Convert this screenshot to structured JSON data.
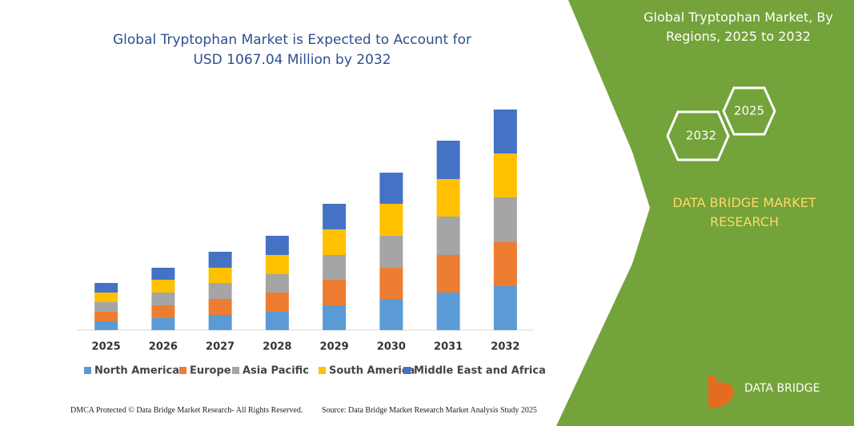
{
  "chart_data": {
    "type": "stacked_bar",
    "title": "Global Tryptophan Market is Expected to Account for USD 1067.04 Million by 2032",
    "categories": [
      "2025",
      "2026",
      "2027",
      "2028",
      "2029",
      "2030",
      "2031",
      "2032"
    ],
    "series": [
      {
        "name": "North America",
        "color": "#5b9bd5",
        "values": [
          11,
          15,
          19,
          23,
          31,
          39,
          47,
          55
        ]
      },
      {
        "name": "Europe",
        "color": "#ed7d31",
        "values": [
          12,
          16,
          20,
          24,
          32,
          39,
          47,
          55
        ]
      },
      {
        "name": "Asia Pacific",
        "color": "#a5a5a5",
        "values": [
          12,
          16,
          20,
          23,
          31,
          40,
          48,
          56
        ]
      },
      {
        "name": "South America",
        "color": "#ffc000",
        "values": [
          12,
          16,
          19,
          24,
          32,
          40,
          47,
          55
        ]
      },
      {
        "name": "Middle East and Africa",
        "color": "#4472c4",
        "values": [
          12,
          15,
          20,
          24,
          32,
          39,
          48,
          55
        ]
      }
    ],
    "ylim": [
      0,
      280
    ]
  },
  "panel": {
    "title": "Global Tryptophan Market, By Regions, 2025 to 2032",
    "hex_upper": "2025",
    "hex_lower": "2032",
    "brand": "DATA BRIDGE MARKET RESEARCH",
    "logo": "DATA BRIDGE"
  },
  "footer": {
    "left": "DMCA Protected © Data Bridge Market Research- All Rights Reserved.",
    "right": "Source: Data Bridge Market Research Market Analysis Study 2025"
  }
}
